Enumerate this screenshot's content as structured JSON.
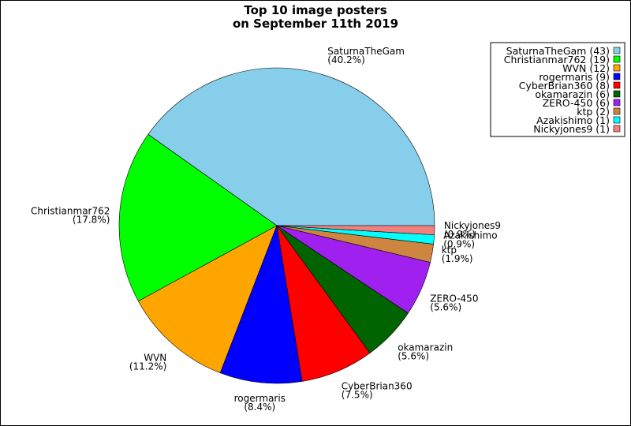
{
  "chart_data": {
    "type": "pie",
    "title_lines": [
      "Top 10 image posters",
      "on September 11th 2019"
    ],
    "slices": [
      {
        "label": "SaturnaTheGam",
        "value": 43,
        "percent_text": "(40.2%)",
        "legend_text": "SaturnaTheGam (43)",
        "color": "#87CEEB"
      },
      {
        "label": "Christianmar762",
        "value": 19,
        "percent_text": "(17.8%)",
        "legend_text": "Christianmar762 (19)",
        "color": "#00FF00"
      },
      {
        "label": "WVN",
        "value": 12,
        "percent_text": "(11.2%)",
        "legend_text": "WVN (12)",
        "color": "#FFA500"
      },
      {
        "label": "rogermaris",
        "value": 9,
        "percent_text": "(8.4%)",
        "legend_text": "rogermaris (9)",
        "color": "#0000FF"
      },
      {
        "label": "CyberBrian360",
        "value": 8,
        "percent_text": "(7.5%)",
        "legend_text": "CyberBrian360 (8)",
        "color": "#FF0000"
      },
      {
        "label": "okamarazin",
        "value": 6,
        "percent_text": "(5.6%)",
        "legend_text": "okamarazin (6)",
        "color": "#006400"
      },
      {
        "label": "ZERO-450",
        "value": 6,
        "percent_text": "(5.6%)",
        "legend_text": "ZERO-450 (6)",
        "color": "#A020F0"
      },
      {
        "label": "ktp",
        "value": 2,
        "percent_text": "(1.9%)",
        "legend_text": "ktp (2)",
        "color": "#CD853F"
      },
      {
        "label": "Azakishimo",
        "value": 1,
        "percent_text": "(0.9%)",
        "legend_text": "Azakishimo (1)",
        "color": "#00FFFF"
      },
      {
        "label": "Nickyjones9",
        "value": 1,
        "percent_text": "(0.9%)",
        "legend_text": "Nickyjones9 (1)",
        "color": "#F08080"
      }
    ],
    "start_angle": "3 o'clock",
    "direction": "counterclockwise",
    "legend_position": "top-right"
  }
}
